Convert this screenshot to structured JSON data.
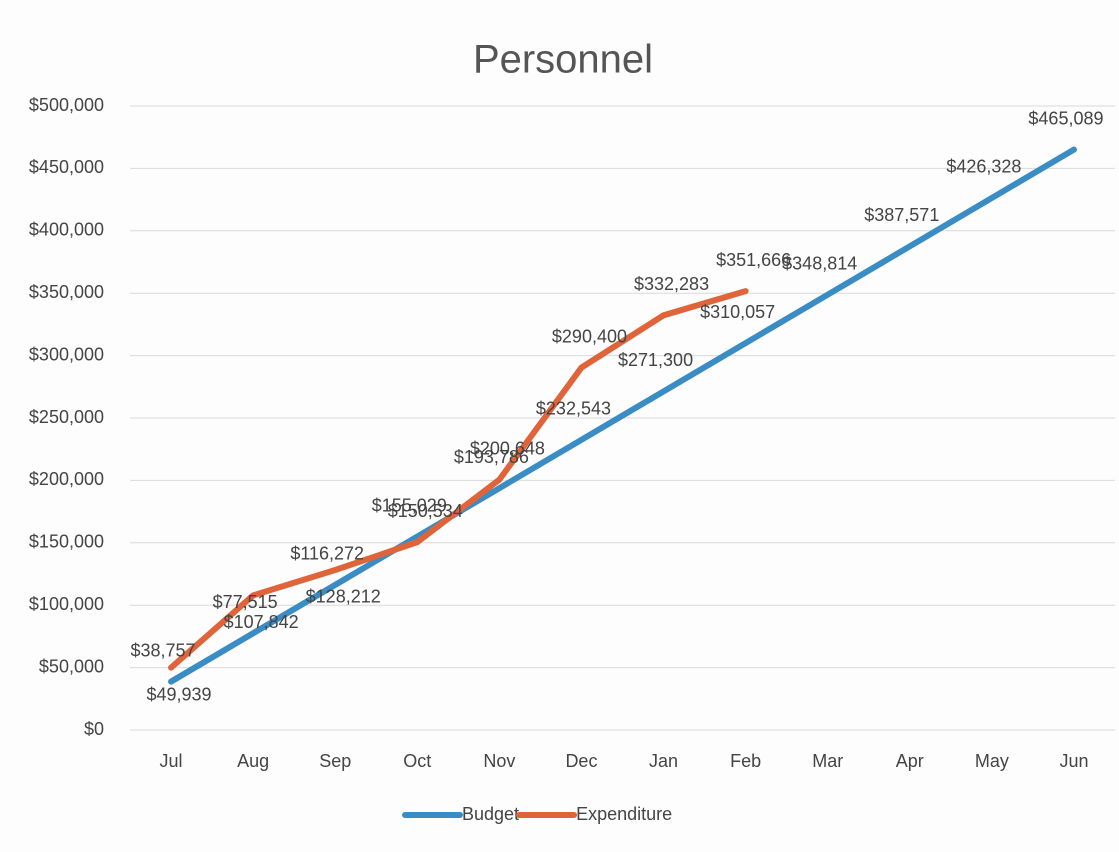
{
  "chart_data": {
    "type": "line",
    "title": "Personnel",
    "categories": [
      "Jul",
      "Aug",
      "Sep",
      "Oct",
      "Nov",
      "Dec",
      "Jan",
      "Feb",
      "Mar",
      "Apr",
      "May",
      "Jun"
    ],
    "series": [
      {
        "name": "Budget",
        "color": "#3a8cc4",
        "values": [
          38757,
          77515,
          116272,
          155029,
          193786,
          232543,
          271300,
          310057,
          348814,
          387571,
          426328,
          465089
        ],
        "value_labels": [
          "$38,757",
          "$77,515",
          "$116,272",
          "$155,029",
          "$193,786",
          "$232,543",
          "$271,300",
          "$310,057",
          "$348,814",
          "$387,571",
          "$426,328",
          "$465,089"
        ]
      },
      {
        "name": "Expenditure",
        "color": "#e0643a",
        "values": [
          49939,
          107842,
          128212,
          150534,
          200648,
          290400,
          332283,
          351666,
          null,
          null,
          null,
          null
        ],
        "value_labels": [
          "$49,939",
          "$107,842",
          "$128,212",
          "$150,534",
          "$200,648",
          "$290,400",
          "$332,283",
          "$351,666",
          null,
          null,
          null,
          null
        ]
      }
    ],
    "ylim": [
      0,
      500000
    ],
    "yticks": [
      {
        "value": 0,
        "label": "$0"
      },
      {
        "value": 50000,
        "label": "$50,000"
      },
      {
        "value": 100000,
        "label": "$100,000"
      },
      {
        "value": 150000,
        "label": "$150,000"
      },
      {
        "value": 200000,
        "label": "$200,000"
      },
      {
        "value": 250000,
        "label": "$250,000"
      },
      {
        "value": 300000,
        "label": "$300,000"
      },
      {
        "value": 350000,
        "label": "$350,000"
      },
      {
        "value": 400000,
        "label": "$400,000"
      },
      {
        "value": 450000,
        "label": "$450,000"
      },
      {
        "value": 500000,
        "label": "$500,000"
      }
    ],
    "grid": true,
    "legend": "bottom"
  }
}
